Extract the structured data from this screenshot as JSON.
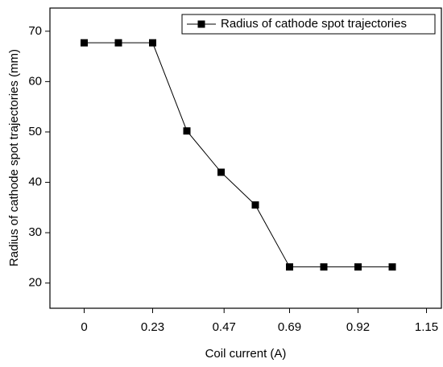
{
  "chart_data": {
    "type": "line",
    "x_label": "Coil current (A)",
    "y_label": "Radius of cathode spot trajectories (mm)",
    "x": [
      0,
      0.115,
      0.23,
      0.345,
      0.46,
      0.575,
      0.69,
      0.805,
      0.92,
      1.035
    ],
    "series": [
      {
        "name": "Radius of cathode spot trajectories",
        "color": "#000000",
        "values": [
          67.7,
          67.7,
          67.7,
          50.2,
          42.0,
          35.5,
          23.2,
          23.2,
          23.2,
          23.2
        ]
      }
    ],
    "xlim": [
      -0.115,
      1.2
    ],
    "xticks": [
      0,
      0.23,
      0.47,
      0.69,
      0.92,
      1.15
    ],
    "ylim": [
      15,
      74.6
    ],
    "yticks": [
      20,
      30,
      40,
      50,
      60,
      70
    ],
    "legend": "upper right",
    "grid": false
  }
}
